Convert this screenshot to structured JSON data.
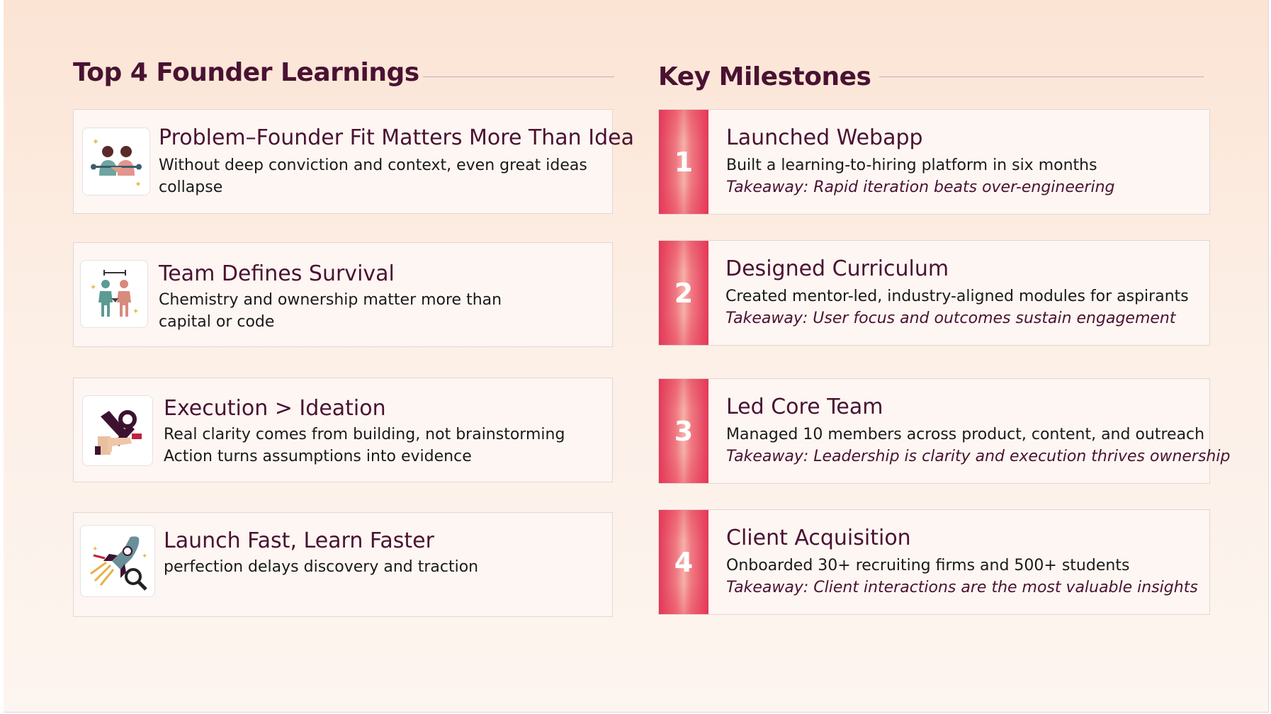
{
  "learnings": {
    "title": "Top 4 Founder Learnings",
    "items": [
      {
        "icon": "handshake-people-icon",
        "title": "Problem–Founder Fit Matters More Than Idea",
        "lines": [
          "Without deep conviction and context, even great ideas",
          "collapse"
        ]
      },
      {
        "icon": "team-handshake-icon",
        "title": "Team Defines Survival",
        "lines": [
          "Chemistry and ownership matter more than",
          "capital or code"
        ]
      },
      {
        "icon": "tools-gear-icon",
        "title": "Execution > Ideation",
        "lines": [
          "Real clarity comes from building, not brainstorming",
          "Action turns assumptions into evidence"
        ]
      },
      {
        "icon": "rocket-magnifier-icon",
        "title": "Launch Fast, Learn Faster",
        "lines": [
          "perfection delays discovery and traction"
        ]
      }
    ]
  },
  "milestones": {
    "title": "Key Milestones",
    "items": [
      {
        "number": "1",
        "title": "Launched Webapp",
        "desc": "Built a learning-to-hiring platform in six months",
        "takeaway": "Takeaway: Rapid iteration beats over-engineering"
      },
      {
        "number": "2",
        "title": "Designed Curriculum",
        "desc": "Created mentor-led, industry-aligned modules for aspirants",
        "takeaway": "Takeaway: User focus and outcomes sustain engagement"
      },
      {
        "number": "3",
        "title": "Led Core Team",
        "desc": "Managed 10 members across product, content, and outreach",
        "takeaway": "Takeaway: Leadership is clarity and execution thrives ownership"
      },
      {
        "number": "4",
        "title": "Client Acquisition",
        "desc": "Onboarded 30+ recruiting firms and 500+ students",
        "takeaway": "Takeaway: Client interactions are the most valuable insights"
      }
    ]
  },
  "colors": {
    "heading": "#4a1232",
    "accent": "#e33a5a"
  }
}
